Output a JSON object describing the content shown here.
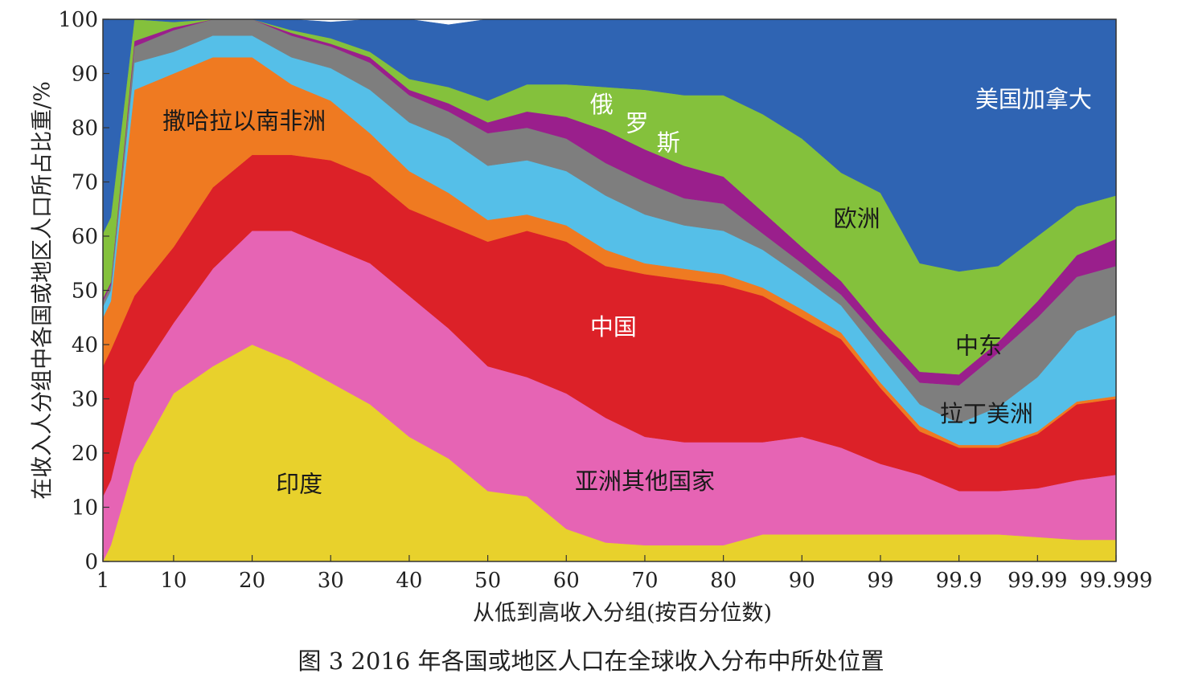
{
  "caption": "图 3   2016 年各国或地区人口在全球收入分布中所处位置",
  "chart_data": {
    "type": "area",
    "stacked": true,
    "xlabel": "从低到高收入分组(按百分位数)",
    "ylabel": "在收入人分组中各国或地区人口所占比重/%",
    "ylim": [
      0,
      100
    ],
    "y_ticks": [
      0,
      10,
      20,
      30,
      40,
      50,
      60,
      70,
      80,
      90,
      100
    ],
    "x_ticks": [
      "1",
      "10",
      "20",
      "30",
      "40",
      "50",
      "60",
      "70",
      "80",
      "90",
      "99",
      "99.9",
      "99.99",
      "99.999"
    ],
    "x_tick_positions": [
      1,
      10,
      20,
      30,
      40,
      50,
      60,
      70,
      80,
      90,
      100,
      110,
      120,
      130
    ],
    "x_scale_note": "positions 100-130 map to percentiles 99, 99.9, 99.99, 99.999",
    "x": [
      1,
      2,
      5,
      10,
      15,
      20,
      25,
      30,
      35,
      40,
      45,
      50,
      55,
      60,
      65,
      70,
      75,
      80,
      85,
      90,
      95,
      100,
      105,
      110,
      115,
      120,
      125,
      130
    ],
    "series": [
      {
        "name": "印度",
        "color": "#e8d12c",
        "values": [
          0,
          3,
          18,
          31,
          36,
          40,
          37,
          33,
          29,
          23,
          19,
          13,
          12,
          6,
          3.5,
          3,
          3,
          3,
          5,
          5,
          5,
          5,
          5,
          5,
          5,
          4.5,
          4,
          4
        ]
      },
      {
        "name": "亚洲其他国家",
        "color": "#e664b4",
        "values": [
          12,
          12,
          15,
          13,
          18,
          21,
          24,
          25,
          26,
          26,
          24,
          23,
          22,
          25,
          23,
          20,
          19,
          19,
          17,
          18,
          16,
          13,
          11,
          8,
          8,
          9,
          11,
          12
        ]
      },
      {
        "name": "中国",
        "color": "#dc2128",
        "values": [
          24,
          24,
          16,
          14,
          15,
          14,
          14,
          16,
          16,
          16,
          19,
          23,
          27,
          28,
          28,
          30,
          30,
          29,
          27,
          22,
          20,
          14,
          8,
          8,
          8,
          10,
          14,
          14
        ]
      },
      {
        "name": "撒哈拉以南非洲",
        "color": "#ef7a21",
        "values": [
          9,
          9,
          38,
          32,
          24,
          18,
          13,
          11,
          8,
          7,
          6,
          4,
          3,
          3,
          3,
          2,
          2,
          2,
          1.5,
          1.5,
          1.2,
          1,
          1,
          0.5,
          0.5,
          0.5,
          0.5,
          0.5
        ]
      },
      {
        "name": "拉丁美洲",
        "color": "#55bfe8",
        "values": [
          2,
          2,
          5,
          4,
          4,
          4,
          5,
          6,
          8,
          9,
          10,
          10,
          10,
          10,
          10,
          9,
          8,
          8,
          7,
          6,
          5,
          5,
          4,
          4,
          7,
          10,
          13,
          15
        ]
      },
      {
        "name": "中东",
        "color": "#7e7e7e",
        "values": [
          1,
          1,
          3,
          4,
          4,
          3,
          4,
          4,
          5,
          5,
          5,
          6,
          6,
          6,
          6,
          6,
          5,
          5,
          3,
          2.5,
          2,
          3,
          4,
          7,
          10,
          11,
          10,
          9
        ]
      },
      {
        "name": "俄罗斯",
        "color": "#9a1f8c",
        "values": [
          0.5,
          0.5,
          1,
          0.5,
          0.5,
          0.5,
          0.5,
          0.5,
          1,
          1,
          1.5,
          2,
          3,
          4,
          6,
          6,
          6,
          5,
          4,
          3,
          2.5,
          2,
          2,
          2,
          2,
          3,
          4,
          5
        ]
      },
      {
        "name": "欧洲",
        "color": "#84c13c",
        "values": [
          12,
          12,
          4,
          1,
          0.5,
          0.5,
          0.5,
          1,
          1,
          2,
          3,
          4,
          5,
          6,
          8,
          11,
          13,
          15,
          18,
          20,
          20,
          25,
          20,
          19,
          14,
          12,
          9,
          8
        ]
      },
      {
        "name": "美国加拿大",
        "color": "#2f64b3",
        "values": [
          39.5,
          36.5,
          0,
          0.5,
          0,
          0,
          2,
          3,
          6,
          11,
          11.5,
          15,
          12,
          12,
          12.5,
          13,
          14,
          14,
          17.5,
          22,
          28.3,
          32,
          45,
          46.5,
          45.5,
          40,
          34.5,
          32.5
        ]
      }
    ],
    "region_labels": [
      {
        "text": "印度",
        "series": "印度",
        "x": 26,
        "y": 14
      },
      {
        "text": "亚洲其他国家",
        "series": "亚洲其他国家",
        "x": 70,
        "y": 14.5
      },
      {
        "text": "中国",
        "series": "中国",
        "x": 66,
        "y": 43
      },
      {
        "text": "撒哈拉以南非洲",
        "series": "撒哈拉以南非洲",
        "x": 19,
        "y": 81
      },
      {
        "text": "拉丁美洲",
        "series": "拉丁美洲",
        "x": 113.5,
        "y": 27
      },
      {
        "text": "中东",
        "series": "中东",
        "x": 112.5,
        "y": 39.5
      },
      {
        "text": "俄",
        "series": "俄罗斯",
        "x": 64.5,
        "y": 84
      },
      {
        "text": "罗",
        "series": "俄罗斯",
        "x": 69,
        "y": 80.5
      },
      {
        "text": "斯",
        "series": "俄罗斯",
        "x": 73,
        "y": 77
      },
      {
        "text": "欧洲",
        "series": "欧洲",
        "x": 97,
        "y": 63
      },
      {
        "text": "美国加拿大",
        "series": "美国加拿大",
        "x": 119.5,
        "y": 85
      }
    ]
  }
}
